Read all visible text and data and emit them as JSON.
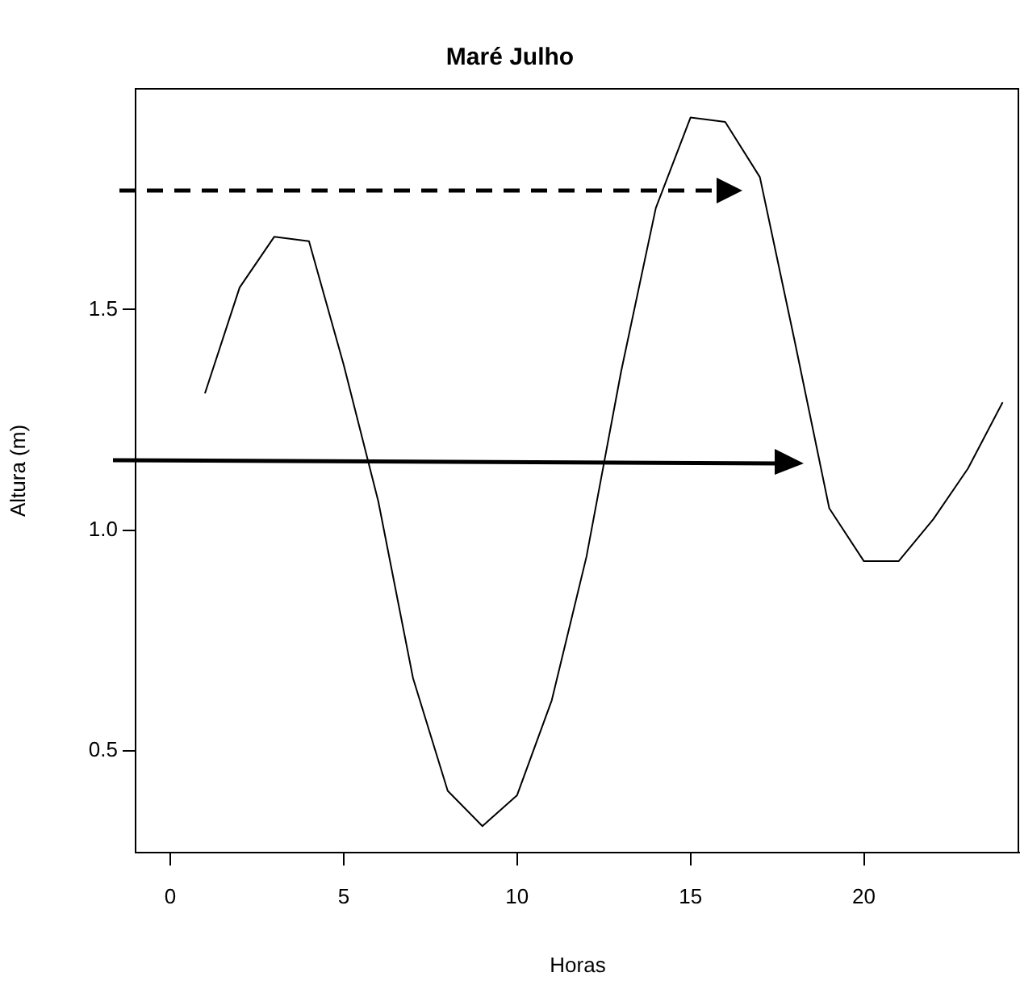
{
  "chart_data": {
    "type": "line",
    "title": "Maré Julho",
    "xlabel": "Horas",
    "ylabel": "Altura (m)",
    "x": [
      1,
      2,
      3,
      4,
      5,
      6,
      7,
      8,
      9,
      10,
      11,
      12,
      13,
      14,
      15,
      16,
      17,
      18,
      19,
      20,
      21,
      22,
      23,
      24
    ],
    "series": [
      {
        "color": "#000000",
        "values": [
          1.31,
          1.55,
          1.665,
          1.655,
          1.375,
          1.065,
          0.665,
          0.41,
          0.33,
          0.4,
          0.615,
          0.94,
          1.36,
          1.73,
          1.935,
          1.925,
          1.8,
          1.43,
          1.05,
          0.93,
          0.93,
          1.025,
          1.14,
          1.29
        ]
      }
    ],
    "xlim": [
      -1,
      24.5
    ],
    "ylim": [
      0.27,
      2.0
    ],
    "xticks": [
      0,
      5,
      10,
      15,
      20
    ],
    "yticks": [
      {
        "value": 0.5,
        "label": "0.5"
      },
      {
        "value": 1,
        "label": "1.0"
      },
      {
        "value": 1.5,
        "label": "1.5"
      }
    ],
    "grid": false,
    "legend": false,
    "marker": "none",
    "line_style": "solid"
  }
}
